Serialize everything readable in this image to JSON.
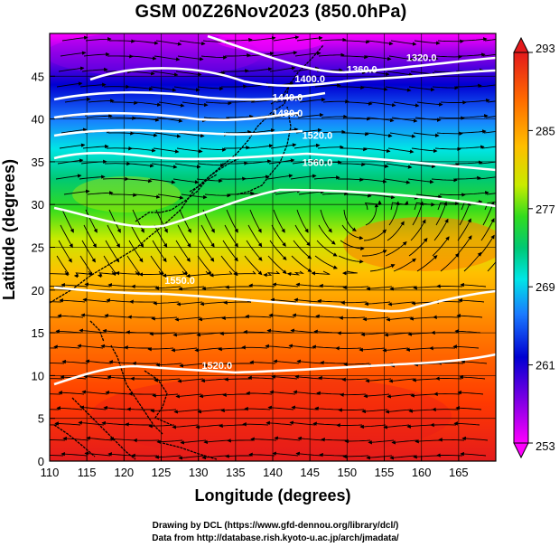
{
  "title": "GSM 00Z26Nov2023 (850.0hPa)",
  "xlabel": "Longitude (degrees)",
  "ylabel": "Latitude  (degrees)",
  "credits": {
    "line1": "Drawing by DCL (https://www.gfd-dennou.org/library/dcl/)",
    "line2": "Data from http://database.rish.kyoto-u.ac.jp/arch/jmadata/"
  },
  "chart_data": {
    "type": "heatmap",
    "variable": "850 hPa temperature (K) with geopotential height contours and streamlines",
    "xlim": [
      110,
      170
    ],
    "ylim": [
      0,
      50
    ],
    "x_ticks": [
      110,
      115,
      120,
      125,
      130,
      135,
      140,
      145,
      150,
      155,
      160,
      165
    ],
    "y_ticks": [
      0,
      5,
      10,
      15,
      20,
      25,
      30,
      35,
      40,
      45
    ],
    "colorbar": {
      "min": 253,
      "max": 293,
      "tick_labels": [
        253,
        261,
        269,
        277,
        285,
        293
      ],
      "colors": [
        "#ff00ff",
        "#8a00e6",
        "#0000d2",
        "#1a7aff",
        "#00e6e6",
        "#00c873",
        "#32dc1e",
        "#c8eb00",
        "#ffbe00",
        "#ff6a00",
        "#e41a1c"
      ]
    },
    "contours": [
      {
        "value": 1320.0,
        "label": "1320.0",
        "lon": 160,
        "lat": 46.8
      },
      {
        "value": 1360.0,
        "label": "1360.0",
        "lon": 152,
        "lat": 45.4
      },
      {
        "value": 1400.0,
        "label": "1400.0",
        "lon": 145,
        "lat": 44.3
      },
      {
        "value": 1440.0,
        "label": "1440.0",
        "lon": 142,
        "lat": 42.1
      },
      {
        "value": 1480.0,
        "label": "1480.0",
        "lon": 142,
        "lat": 40.3
      },
      {
        "value": 1520.0,
        "label": "1520.0",
        "lon": 146,
        "lat": 37.7
      },
      {
        "value": 1560.0,
        "label": "1560.0",
        "lon": 146,
        "lat": 34.5
      },
      {
        "value": 1550.0,
        "label": "1550.0",
        "lon": 127.5,
        "lat": 20.7
      },
      {
        "value": 1520.0,
        "label": "1520.0",
        "lon": 132.5,
        "lat": 10.8
      }
    ]
  }
}
